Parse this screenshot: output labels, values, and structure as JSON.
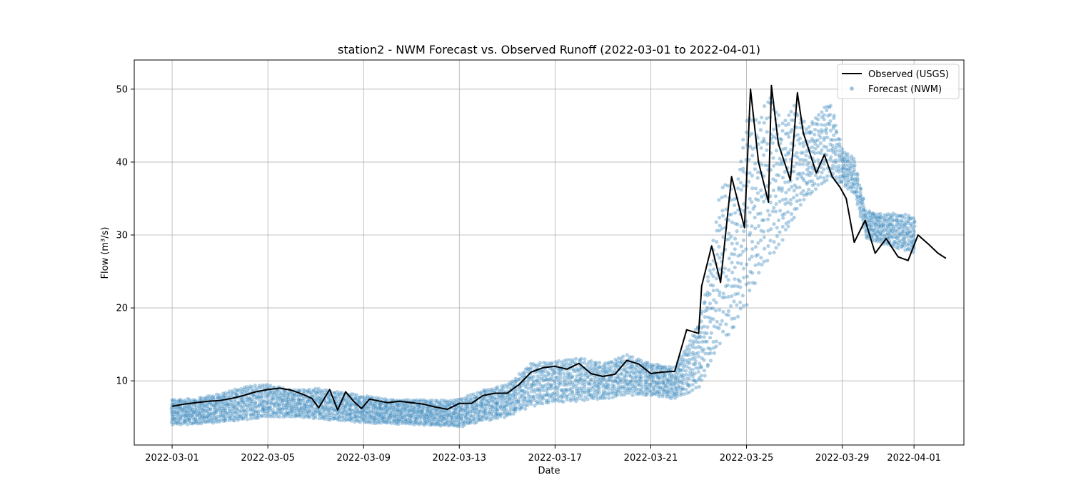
{
  "chart_data": {
    "type": "scatter",
    "title": "station2 - NWM Forecast vs. Observed Runoff (2022-03-01 to 2022-04-01)",
    "xlabel": "Date",
    "ylabel": "Flow (m³/s)",
    "xlim": [
      "2022-02-27T10:00",
      "2022-04-03T02:00"
    ],
    "ylim": [
      1.2,
      54
    ],
    "grid": true,
    "legend_position": "top-right",
    "x_ticks": [
      "2022-03-01",
      "2022-03-05",
      "2022-03-09",
      "2022-03-13",
      "2022-03-17",
      "2022-03-21",
      "2022-03-25",
      "2022-03-29",
      "2022-04-01"
    ],
    "y_ticks": [
      10,
      20,
      30,
      40,
      50
    ],
    "colors": {
      "observed": "#000000",
      "forecast": "#1f77b4"
    },
    "series": [
      {
        "name": "Observed (USGS)",
        "kind": "line",
        "x": [
          "2022-03-01T00:00",
          "2022-03-01T12:00",
          "2022-03-02T00:00",
          "2022-03-02T12:00",
          "2022-03-03T00:00",
          "2022-03-03T12:00",
          "2022-03-04T00:00",
          "2022-03-04T12:00",
          "2022-03-05T00:00",
          "2022-03-05T12:00",
          "2022-03-06T00:00",
          "2022-03-06T12:00",
          "2022-03-06T20:00",
          "2022-03-07T03:00",
          "2022-03-07T14:00",
          "2022-03-07T22:00",
          "2022-03-08T06:00",
          "2022-03-08T14:00",
          "2022-03-08T22:00",
          "2022-03-09T06:00",
          "2022-03-10T00:00",
          "2022-03-10T12:00",
          "2022-03-11T00:00",
          "2022-03-11T12:00",
          "2022-03-12T00:00",
          "2022-03-12T12:00",
          "2022-03-13T00:00",
          "2022-03-13T12:00",
          "2022-03-14T00:00",
          "2022-03-14T12:00",
          "2022-03-15T00:00",
          "2022-03-15T12:00",
          "2022-03-16T00:00",
          "2022-03-16T12:00",
          "2022-03-17T00:00",
          "2022-03-17T12:00",
          "2022-03-18T00:00",
          "2022-03-18T12:00",
          "2022-03-19T00:00",
          "2022-03-19T12:00",
          "2022-03-20T00:00",
          "2022-03-20T12:00",
          "2022-03-21T00:00",
          "2022-03-21T12:00",
          "2022-03-22T00:00",
          "2022-03-22T12:00",
          "2022-03-23T00:00",
          "2022-03-23T03:00",
          "2022-03-23T13:00",
          "2022-03-23T22:00",
          "2022-03-24T09:00",
          "2022-03-24T22:00",
          "2022-03-25T04:00",
          "2022-03-25T08:00",
          "2022-03-25T12:00",
          "2022-03-25T22:00",
          "2022-03-26T01:00",
          "2022-03-26T08:00",
          "2022-03-26T20:00",
          "2022-03-27T03:00",
          "2022-03-27T09:00",
          "2022-03-27T22:00",
          "2022-03-28T06:00",
          "2022-03-28T14:00",
          "2022-03-28T22:00",
          "2022-03-29T04:00",
          "2022-03-29T12:00",
          "2022-03-29T23:00",
          "2022-03-30T09:00",
          "2022-03-30T20:00",
          "2022-03-31T08:00",
          "2022-03-31T18:00",
          "2022-04-01T04:00",
          "2022-04-01T14:00",
          "2022-04-02T00:00",
          "2022-04-02T08:00"
        ],
        "y": [
          6.5,
          6.8,
          7.0,
          7.2,
          7.3,
          7.6,
          8.0,
          8.5,
          8.8,
          9.0,
          8.7,
          8.1,
          7.6,
          6.3,
          8.8,
          6.0,
          8.5,
          7.2,
          6.2,
          7.5,
          7.0,
          7.2,
          7.0,
          6.8,
          6.4,
          6.1,
          6.9,
          6.9,
          8.0,
          8.3,
          8.3,
          9.5,
          11.2,
          11.8,
          12.0,
          11.6,
          12.4,
          11.0,
          10.6,
          10.9,
          12.8,
          12.3,
          11.0,
          11.2,
          11.3,
          17.0,
          16.5,
          23.0,
          28.5,
          23.5,
          38.0,
          31.0,
          50.0,
          45.0,
          40.0,
          34.5,
          50.5,
          42.5,
          37.5,
          49.5,
          44.0,
          38.5,
          41.0,
          38.0,
          36.5,
          35.0,
          29.0,
          32.0,
          27.5,
          29.5,
          27.0,
          26.5,
          30.0,
          28.8,
          27.5,
          26.8
        ]
      },
      {
        "name": "Forecast (NWM)",
        "kind": "scatter",
        "x_range": [
          "2022-03-01T00:00",
          "2022-04-01T00:00"
        ],
        "upper_envelope": {
          "x": [
            "2022-03-01T00:00",
            "2022-03-02T00:00",
            "2022-03-03T00:00",
            "2022-03-04T00:00",
            "2022-03-05T00:00",
            "2022-03-06T00:00",
            "2022-03-07T00:00",
            "2022-03-08T00:00",
            "2022-03-09T00:00",
            "2022-03-10T00:00",
            "2022-03-11T00:00",
            "2022-03-12T00:00",
            "2022-03-13T00:00",
            "2022-03-14T00:00",
            "2022-03-15T00:00",
            "2022-03-16T00:00",
            "2022-03-17T00:00",
            "2022-03-18T00:00",
            "2022-03-19T00:00",
            "2022-03-20T00:00",
            "2022-03-21T00:00",
            "2022-03-22T00:00",
            "2022-03-23T00:00",
            "2022-03-23T12:00",
            "2022-03-24T00:00",
            "2022-03-24T12:00",
            "2022-03-25T00:00",
            "2022-03-25T12:00",
            "2022-03-26T00:00",
            "2022-03-26T12:00",
            "2022-03-27T00:00",
            "2022-03-27T12:00",
            "2022-03-28T00:00",
            "2022-03-28T12:00",
            "2022-03-29T00:00",
            "2022-03-29T12:00",
            "2022-03-30T00:00",
            "2022-03-30T12:00",
            "2022-03-31T00:00",
            "2022-03-31T12:00",
            "2022-04-01T00:00"
          ],
          "y": [
            7.5,
            7.6,
            8.3,
            9.2,
            9.6,
            8.8,
            9.0,
            8.5,
            8.0,
            7.5,
            7.5,
            7.4,
            7.5,
            8.8,
            9.5,
            12.5,
            12.8,
            13.2,
            12.5,
            13.6,
            12.5,
            12.0,
            18.0,
            27.0,
            38.0,
            36.0,
            47.0,
            46.0,
            50.0,
            46.0,
            48.5,
            45.0,
            47.0,
            48.5,
            42.0,
            40.5,
            33.5,
            33.0,
            33.0,
            33.0,
            32.5
          ]
        },
        "lower_envelope": {
          "x": [
            "2022-03-01T00:00",
            "2022-03-02T00:00",
            "2022-03-03T00:00",
            "2022-03-04T00:00",
            "2022-03-05T00:00",
            "2022-03-06T00:00",
            "2022-03-07T00:00",
            "2022-03-08T00:00",
            "2022-03-09T00:00",
            "2022-03-10T00:00",
            "2022-03-11T00:00",
            "2022-03-12T00:00",
            "2022-03-13T00:00",
            "2022-03-14T00:00",
            "2022-03-15T00:00",
            "2022-03-16T00:00",
            "2022-03-17T00:00",
            "2022-03-18T00:00",
            "2022-03-19T00:00",
            "2022-03-20T00:00",
            "2022-03-21T00:00",
            "2022-03-22T00:00",
            "2022-03-23T00:00",
            "2022-03-23T12:00",
            "2022-03-24T00:00",
            "2022-03-24T12:00",
            "2022-03-25T00:00",
            "2022-03-25T12:00",
            "2022-03-26T00:00",
            "2022-03-26T12:00",
            "2022-03-27T00:00",
            "2022-03-27T12:00",
            "2022-03-28T00:00",
            "2022-03-28T12:00",
            "2022-03-29T00:00",
            "2022-03-29T12:00",
            "2022-03-30T00:00",
            "2022-03-30T12:00",
            "2022-03-31T00:00",
            "2022-03-31T12:00",
            "2022-04-01T00:00"
          ],
          "y": [
            4.0,
            4.0,
            4.3,
            4.6,
            5.0,
            5.0,
            4.8,
            4.5,
            4.2,
            4.1,
            4.0,
            3.8,
            3.6,
            4.5,
            5.0,
            6.5,
            7.0,
            7.2,
            7.5,
            8.0,
            8.0,
            7.5,
            9.0,
            12.0,
            15.5,
            17.0,
            20.0,
            24.0,
            27.0,
            29.0,
            32.0,
            35.0,
            36.5,
            37.5,
            37.0,
            35.5,
            29.5,
            29.0,
            28.5,
            28.0,
            27.5
          ]
        }
      }
    ]
  }
}
